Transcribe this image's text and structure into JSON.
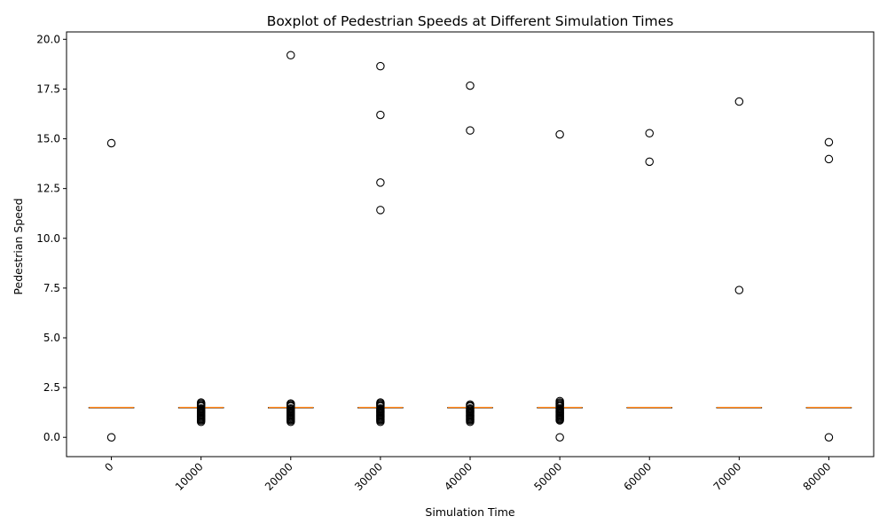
{
  "chart_data": {
    "type": "boxplot",
    "title": "Boxplot of Pedestrian Speeds at Different Simulation Times",
    "xlabel": "Simulation Time",
    "ylabel": "Pedestrian Speed",
    "x_tick_rotation_deg": 45,
    "categories": [
      "0",
      "10000",
      "20000",
      "30000",
      "40000",
      "50000",
      "60000",
      "70000",
      "80000"
    ],
    "ylim": [
      -0.97,
      20.37
    ],
    "yticks": [
      0.0,
      2.5,
      5.0,
      7.5,
      10.0,
      12.5,
      15.0,
      17.5,
      20.0
    ],
    "ytick_labels": [
      "0.0",
      "2.5",
      "5.0",
      "7.5",
      "10.0",
      "12.5",
      "15.0",
      "17.5",
      "20.0"
    ],
    "grid": false,
    "colors": {
      "box": "#000000",
      "median": "#ff7f0e",
      "flier": "#000000"
    },
    "boxes": [
      {
        "x": "0",
        "median": 1.5,
        "q1": 1.5,
        "q3": 1.5,
        "whislo": 1.5,
        "whishi": 1.5,
        "fliers": [
          0.0,
          14.78
        ]
      },
      {
        "x": "10000",
        "median": 1.5,
        "q1": 1.5,
        "q3": 1.5,
        "whislo": 1.5,
        "whishi": 1.5,
        "fliers": [
          0.78,
          0.85,
          0.9,
          0.95,
          1.0,
          1.05,
          1.1,
          1.15,
          1.2,
          1.25,
          1.3,
          1.35,
          1.4,
          1.45,
          1.55,
          1.6,
          1.65,
          1.7,
          1.75
        ]
      },
      {
        "x": "20000",
        "median": 1.5,
        "q1": 1.5,
        "q3": 1.5,
        "whislo": 1.5,
        "whishi": 1.5,
        "fliers": [
          0.78,
          0.85,
          0.9,
          0.95,
          1.0,
          1.05,
          1.1,
          1.15,
          1.2,
          1.25,
          1.3,
          1.35,
          1.4,
          1.45,
          1.55,
          1.6,
          1.65,
          1.7,
          19.2
        ]
      },
      {
        "x": "30000",
        "median": 1.5,
        "q1": 1.5,
        "q3": 1.5,
        "whislo": 1.5,
        "whishi": 1.5,
        "fliers": [
          0.78,
          0.85,
          0.9,
          0.95,
          1.0,
          1.05,
          1.1,
          1.15,
          1.2,
          1.25,
          1.3,
          1.35,
          1.4,
          1.45,
          1.55,
          1.6,
          1.65,
          1.7,
          1.75,
          11.42,
          12.8,
          16.2,
          18.65
        ]
      },
      {
        "x": "40000",
        "median": 1.5,
        "q1": 1.5,
        "q3": 1.5,
        "whislo": 1.5,
        "whishi": 1.5,
        "fliers": [
          0.78,
          0.85,
          0.9,
          0.95,
          1.0,
          1.05,
          1.1,
          1.15,
          1.2,
          1.25,
          1.3,
          1.35,
          1.4,
          1.45,
          1.55,
          1.6,
          1.65,
          15.42,
          17.67
        ]
      },
      {
        "x": "50000",
        "median": 1.5,
        "q1": 1.5,
        "q3": 1.5,
        "whislo": 1.5,
        "whishi": 1.5,
        "fliers": [
          0.0,
          0.85,
          0.9,
          0.95,
          1.0,
          1.05,
          1.1,
          1.15,
          1.2,
          1.25,
          1.3,
          1.35,
          1.4,
          1.45,
          1.55,
          1.6,
          1.65,
          1.7,
          1.75,
          1.82,
          15.22
        ]
      },
      {
        "x": "60000",
        "median": 1.5,
        "q1": 1.5,
        "q3": 1.5,
        "whislo": 1.5,
        "whishi": 1.5,
        "fliers": [
          13.85,
          15.28
        ]
      },
      {
        "x": "70000",
        "median": 1.5,
        "q1": 1.5,
        "q3": 1.5,
        "whislo": 1.5,
        "whishi": 1.5,
        "fliers": [
          7.4,
          16.87
        ]
      },
      {
        "x": "80000",
        "median": 1.5,
        "q1": 1.5,
        "q3": 1.5,
        "whislo": 1.5,
        "whishi": 1.5,
        "fliers": [
          0.0,
          13.98,
          14.83
        ]
      }
    ]
  }
}
